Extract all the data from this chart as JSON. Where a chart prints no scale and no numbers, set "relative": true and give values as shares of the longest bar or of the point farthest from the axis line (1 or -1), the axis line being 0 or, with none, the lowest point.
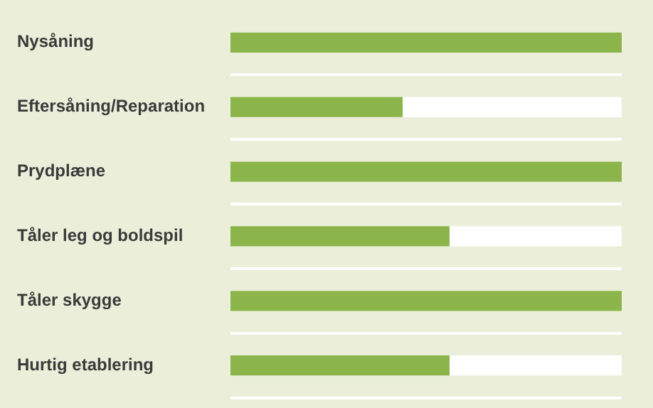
{
  "chart_data": {
    "type": "bar",
    "orientation": "horizontal",
    "stacked": true,
    "relative": true,
    "grid": "y",
    "legend": false,
    "categories": [
      "Nysåning",
      "Eftersåning/Reparation",
      "Prydplæne",
      "Tåler leg og boldspil",
      "Tåler skygge",
      "Hurtig etablering"
    ],
    "series": [
      {
        "color": "#8bb54a",
        "values": [
          1,
          0.44,
          1,
          0.56,
          1,
          0.56
        ]
      },
      {
        "color": "#ffffff",
        "values": [
          0,
          0.56,
          0,
          0.44,
          0,
          0.44
        ]
      }
    ]
  }
}
